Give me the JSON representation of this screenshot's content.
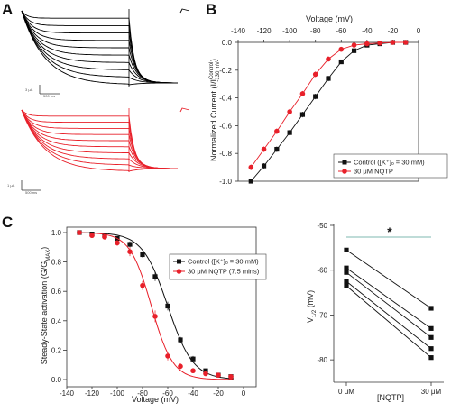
{
  "panels": {
    "a": {
      "label": "A",
      "traces_top": {
        "color": "#000000",
        "scale_y": "3 μA",
        "scale_x": "500 ms"
      },
      "traces_bottom": {
        "color": "#e8202a",
        "scale_y": "1 μA",
        "scale_x": "500 ms"
      }
    },
    "b": {
      "label": "B"
    },
    "c": {
      "label": "C"
    }
  },
  "colors": {
    "control": "#111111",
    "nqtp": "#e8202a",
    "significance_bar": "#7fb8b0"
  },
  "chart_data": [
    {
      "id": "iv",
      "type": "scatter",
      "xlabel": "Voltage (mV)",
      "ylabel": "Normalized Current (I/I",
      "ylabel_sup": "Control",
      "ylabel_sub": "-130 mV",
      "ylabel_end": ")",
      "xlim": [
        -140,
        0
      ],
      "ylim": [
        -1.0,
        0.0
      ],
      "xticks": [
        "-140",
        "-120",
        "-100",
        "-80",
        "-60",
        "-40",
        "-20",
        "0"
      ],
      "yticks": [
        "0.0",
        "-0.2",
        "-0.4",
        "-0.6",
        "-0.8",
        "-1.0"
      ],
      "x_axis_position": "top",
      "legend_position": "bottom-right",
      "series": [
        {
          "name": "Control ([K⁺]ₒ = 30 mM)",
          "marker": "square",
          "color": "#111111",
          "x": [
            -130,
            -120,
            -110,
            -100,
            -90,
            -80,
            -70,
            -60,
            -50,
            -40,
            -30,
            -20,
            -10
          ],
          "y": [
            -1.0,
            -0.89,
            -0.77,
            -0.65,
            -0.52,
            -0.39,
            -0.26,
            -0.14,
            -0.06,
            -0.02,
            -0.01,
            0.0,
            0.0
          ],
          "err": [
            0.01,
            0.02,
            0.02,
            0.02,
            0.02,
            0.02,
            0.02,
            0.01,
            0.01,
            0.01,
            0.005,
            0.005,
            0.005
          ]
        },
        {
          "name": "30 μM NQTP",
          "marker": "circle",
          "color": "#e8202a",
          "x": [
            -130,
            -120,
            -110,
            -100,
            -90,
            -80,
            -70,
            -60,
            -50,
            -40,
            -30,
            -20,
            -10
          ],
          "y": [
            -0.9,
            -0.77,
            -0.64,
            -0.5,
            -0.37,
            -0.23,
            -0.12,
            -0.05,
            -0.02,
            -0.01,
            -0.005,
            0.0,
            0.0
          ],
          "err": [
            0.02,
            0.02,
            0.02,
            0.02,
            0.02,
            0.02,
            0.015,
            0.01,
            0.01,
            0.005,
            0.005,
            0.005,
            0.005
          ]
        }
      ]
    },
    {
      "id": "activation",
      "type": "scatter",
      "xlabel": "Voltage (mV)",
      "ylabel": "Steady-State activation (G/G",
      "ylabel_sub": "MAX",
      "ylabel_end": ")",
      "xlim": [
        -140,
        0
      ],
      "ylim": [
        0.0,
        1.0
      ],
      "xticks": [
        "-140",
        "-120",
        "-100",
        "-80",
        "-60",
        "-40",
        "-20",
        "0"
      ],
      "yticks": [
        "0.0",
        "0.2",
        "0.4",
        "0.6",
        "0.8",
        "1.0"
      ],
      "legend_position": "top-right",
      "series": [
        {
          "name": "Control ([K⁺]ₒ = 30 mM)",
          "marker": "square",
          "color": "#111111",
          "x": [
            -130,
            -120,
            -110,
            -100,
            -90,
            -80,
            -70,
            -60,
            -50,
            -40,
            -30,
            -20,
            -10
          ],
          "y": [
            1.0,
            0.99,
            0.98,
            0.96,
            0.92,
            0.85,
            0.7,
            0.5,
            0.27,
            0.14,
            0.06,
            0.03,
            0.02
          ],
          "err": [
            0.005,
            0.01,
            0.01,
            0.01,
            0.02,
            0.02,
            0.03,
            0.03,
            0.02,
            0.02,
            0.01,
            0.01,
            0.01
          ],
          "fit": {
            "v_half": -60,
            "k": 10
          }
        },
        {
          "name": "30 μM NQTP (7.5 mins)",
          "marker": "circle",
          "color": "#e8202a",
          "x": [
            -130,
            -120,
            -110,
            -100,
            -90,
            -80,
            -70,
            -60,
            -50,
            -40,
            -30,
            -20,
            -10
          ],
          "y": [
            1.0,
            0.98,
            0.97,
            0.93,
            0.87,
            0.64,
            0.43,
            0.16,
            0.09,
            0.06,
            0.04,
            0.03,
            0.02
          ],
          "err": [
            0.005,
            0.01,
            0.01,
            0.02,
            0.03,
            0.03,
            0.04,
            0.03,
            0.02,
            0.01,
            0.01,
            0.01,
            0.01
          ],
          "fit": {
            "v_half": -73,
            "k": 8.5
          }
        }
      ]
    },
    {
      "id": "vhalf",
      "type": "line",
      "ylabel": "V",
      "ylabel_sub": "1/2",
      "ylabel_end": " (mV)",
      "xlabel": "[NQTP]",
      "categories": [
        "0 μM",
        "30 μM"
      ],
      "ylim": [
        -85,
        -50
      ],
      "yticks": [
        "-50",
        "-60",
        "-70",
        "-80"
      ],
      "significance": "*",
      "pairs": [
        [
          -55.5,
          -68.5
        ],
        [
          -59.5,
          -73
        ],
        [
          -60.5,
          -75
        ],
        [
          -62.5,
          -77.5
        ],
        [
          -63.5,
          -79.5
        ]
      ]
    }
  ]
}
